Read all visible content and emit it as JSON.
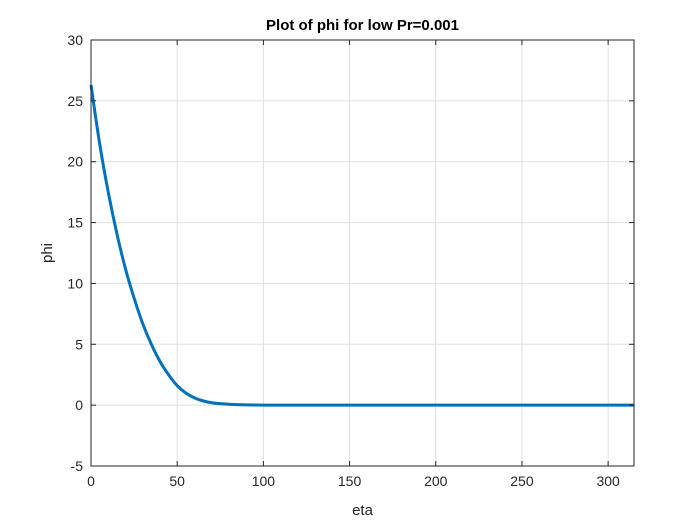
{
  "chart_data": {
    "type": "line",
    "title": "Plot of phi for low Pr=0.001",
    "xlabel": "eta",
    "ylabel": "phi",
    "xlim": [
      0,
      315
    ],
    "ylim": [
      -5,
      30
    ],
    "xticks": [
      0,
      50,
      100,
      150,
      200,
      250,
      300
    ],
    "yticks": [
      -5,
      0,
      5,
      10,
      15,
      20,
      25,
      30
    ],
    "xtick_labels": [
      "0",
      "50",
      "100",
      "150",
      "200",
      "250",
      "300"
    ],
    "ytick_labels": [
      "-5",
      "0",
      "5",
      "10",
      "15",
      "20",
      "25",
      "30"
    ],
    "grid": true,
    "series": [
      {
        "color": "#0072BD",
        "x": [
          0,
          5,
          10,
          15,
          20,
          25,
          30,
          35,
          40,
          45,
          50,
          55,
          60,
          65,
          70,
          75,
          80,
          85,
          90,
          95,
          100,
          110,
          120,
          150,
          200,
          250,
          300,
          315
        ],
        "y": [
          26.3,
          21.5,
          17.5,
          14.1,
          11.2,
          8.8,
          6.7,
          5.0,
          3.6,
          2.5,
          1.6,
          1.0,
          0.6,
          0.35,
          0.2,
          0.12,
          0.07,
          0.04,
          0.02,
          0.01,
          0.005,
          0.002,
          0.0,
          0.0,
          0.0,
          0.0,
          0.0,
          0.0
        ]
      }
    ]
  }
}
